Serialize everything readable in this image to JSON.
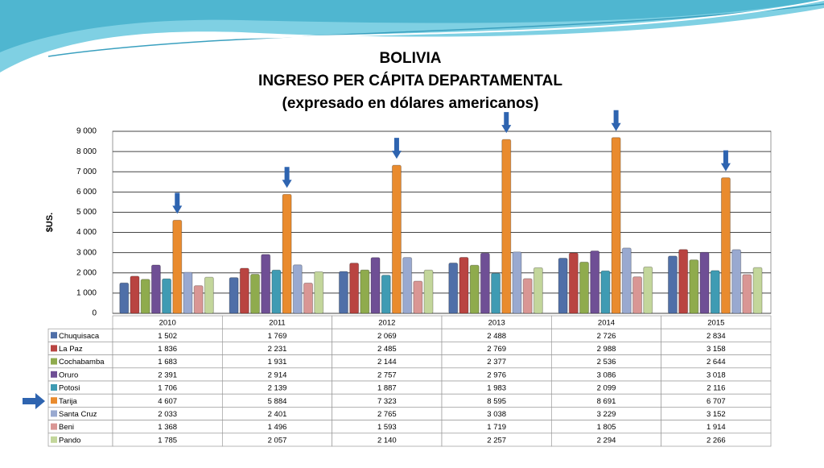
{
  "chart_data": {
    "type": "bar",
    "title": [
      "BOLIVIA",
      "INGRESO PER CÁPITA DEPARTAMENTAL",
      "(expresado en dólares americanos)"
    ],
    "y_label": "$US.",
    "categories": [
      "2010",
      "2011",
      "2012",
      "2013",
      "2014",
      "2015"
    ],
    "ylim": [
      0,
      9000
    ],
    "yticks": [
      {
        "value": 0,
        "label": "0"
      },
      {
        "value": 1000,
        "label": "1 000"
      },
      {
        "value": 2000,
        "label": "2 000"
      },
      {
        "value": 3000,
        "label": "3 000"
      },
      {
        "value": 4000,
        "label": "4 000"
      },
      {
        "value": 5000,
        "label": "5 000"
      },
      {
        "value": 6000,
        "label": "6 000"
      },
      {
        "value": 7000,
        "label": "7 000"
      },
      {
        "value": 8000,
        "label": "8 000"
      },
      {
        "value": 9000,
        "label": "9 000"
      }
    ],
    "grid": true,
    "series": [
      {
        "name": "Chuquisaca",
        "color": "#4f6fa8",
        "values": [
          1502,
          1769,
          2069,
          2488,
          2726,
          2834
        ],
        "value_labels": [
          "1 502",
          "1 769",
          "2 069",
          "2 488",
          "2 726",
          "2 834"
        ]
      },
      {
        "name": "La Paz",
        "color": "#b94441",
        "values": [
          1836,
          2231,
          2485,
          2769,
          2988,
          3158
        ],
        "value_labels": [
          "1 836",
          "2 231",
          "2 485",
          "2 769",
          "2 988",
          "3 158"
        ]
      },
      {
        "name": "Cochabamba",
        "color": "#8fab4d",
        "values": [
          1683,
          1931,
          2144,
          2377,
          2536,
          2644
        ],
        "value_labels": [
          "1 683",
          "1 931",
          "2 144",
          "2 377",
          "2 536",
          "2 644"
        ]
      },
      {
        "name": "Oruro",
        "color": "#6f4f95",
        "values": [
          2391,
          2914,
          2757,
          2976,
          3086,
          3018
        ],
        "value_labels": [
          "2 391",
          "2 914",
          "2 757",
          "2 976",
          "3 086",
          "3 018"
        ]
      },
      {
        "name": "Potosi",
        "color": "#3f9bb3",
        "values": [
          1706,
          2139,
          1887,
          1983,
          2099,
          2116
        ],
        "value_labels": [
          "1 706",
          "2 139",
          "1 887",
          "1 983",
          "2 099",
          "2 116"
        ]
      },
      {
        "name": "Tarija",
        "color": "#e98b2e",
        "values": [
          4607,
          5884,
          7323,
          8595,
          8691,
          6707
        ],
        "value_labels": [
          "4 607",
          "5 884",
          "7 323",
          "8 595",
          "8 691",
          "6 707"
        ]
      },
      {
        "name": "Santa Cruz",
        "color": "#99a9d0",
        "values": [
          2033,
          2401,
          2765,
          3038,
          3229,
          3152
        ],
        "value_labels": [
          "2 033",
          "2 401",
          "2 765",
          "3 038",
          "3 229",
          "3 152"
        ]
      },
      {
        "name": "Beni",
        "color": "#d99694",
        "values": [
          1368,
          1496,
          1593,
          1719,
          1805,
          1914
        ],
        "value_labels": [
          "1 368",
          "1 496",
          "1 593",
          "1 719",
          "1 805",
          "1 914"
        ]
      },
      {
        "name": "Pando",
        "color": "#c3d69b",
        "values": [
          1785,
          2057,
          2140,
          2257,
          2294,
          2266
        ],
        "value_labels": [
          "1 785",
          "2 057",
          "2 140",
          "2 257",
          "2 294",
          "2 266"
        ]
      }
    ]
  }
}
